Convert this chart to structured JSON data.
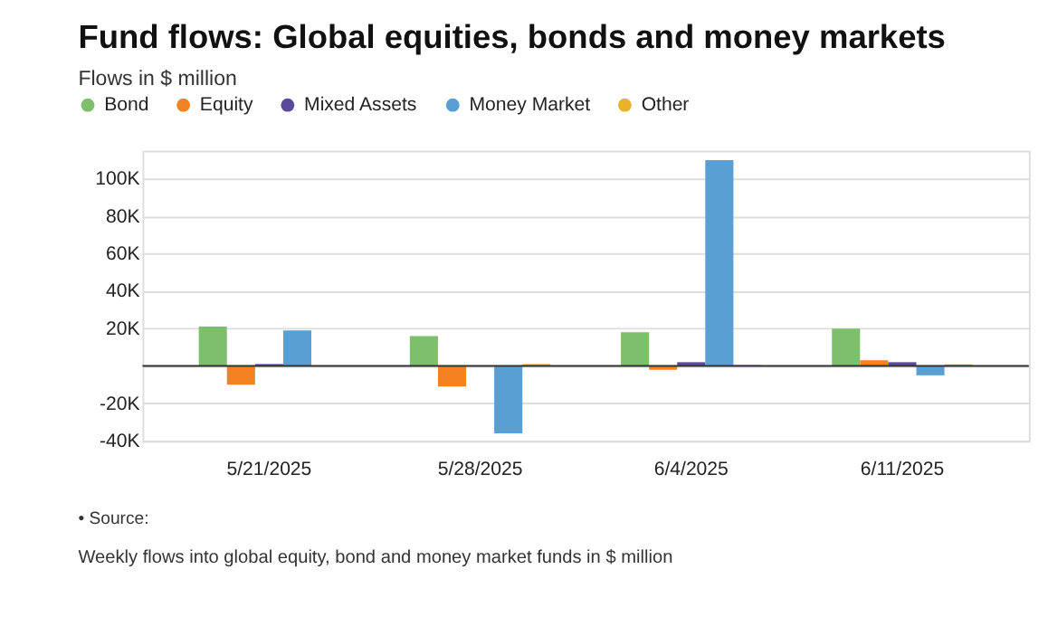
{
  "chart_data": {
    "type": "bar",
    "title": "Fund flows: Global equities, bonds and money markets",
    "subtitle": "Flows in $ million",
    "categories": [
      "5/21/2025",
      "5/28/2025",
      "6/4/2025",
      "6/11/2025"
    ],
    "series": [
      {
        "name": "Bond",
        "color": "#7dbf6d",
        "values": [
          21000,
          16000,
          18000,
          20000
        ]
      },
      {
        "name": "Equity",
        "color": "#f58220",
        "values": [
          -10000,
          -11000,
          -2000,
          3000
        ]
      },
      {
        "name": "Mixed Assets",
        "color": "#5b4a9c",
        "values": [
          1000,
          0,
          2000,
          2000
        ]
      },
      {
        "name": "Money Market",
        "color": "#5a9fd4",
        "values": [
          19000,
          -36000,
          110000,
          -5000
        ]
      },
      {
        "name": "Other",
        "color": "#e8b32a",
        "values": [
          0,
          1000,
          500,
          800
        ]
      }
    ],
    "ylim": [
      -40000,
      115000
    ],
    "yticks": [
      {
        "value": -40000,
        "label": "-40K"
      },
      {
        "value": -20000,
        "label": "-20K"
      },
      {
        "value": 0,
        "label": null
      },
      {
        "value": 20000,
        "label": "20K"
      },
      {
        "value": 40000,
        "label": "40K"
      },
      {
        "value": 60000,
        "label": "60K"
      },
      {
        "value": 80000,
        "label": "80K"
      },
      {
        "value": 100000,
        "label": "100K"
      }
    ],
    "grid": "y",
    "legend": "top left",
    "annotations": [
      "• Source:",
      "Weekly flows into global equity, bond and money market funds in $ million"
    ]
  }
}
